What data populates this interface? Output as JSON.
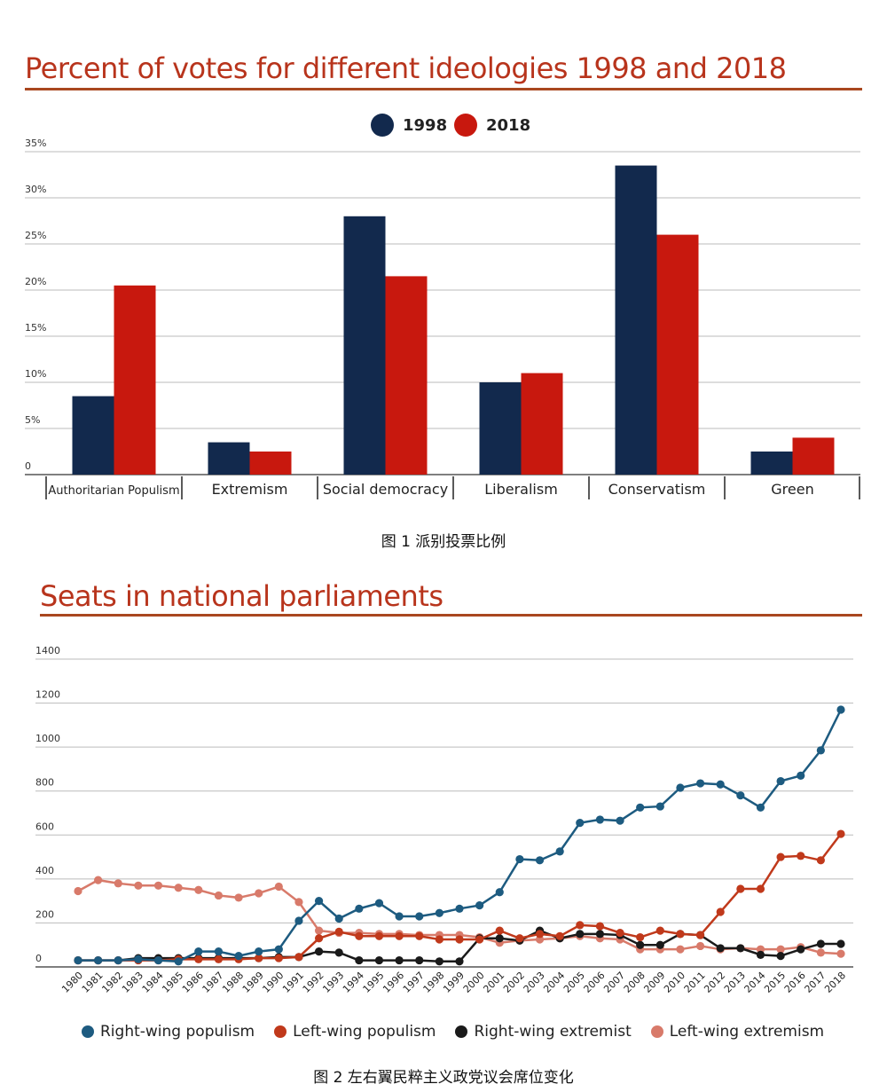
{
  "figure1": {
    "caption": "图 1 派别投票比例"
  },
  "figure2": {
    "caption": "图 2 左右翼民粹主义政党议会席位变化"
  },
  "colors": {
    "title": "#b8341c",
    "navy": "#12294d",
    "red": "#c8180e",
    "blue_series": "#1d5b80",
    "orange_series": "#c0391b",
    "black_series": "#1a1a1a",
    "salmon_series": "#d87a6a"
  },
  "chart_data": [
    {
      "type": "bar",
      "title": "Percent of votes for different ideologies 1998 and 2018",
      "categories": [
        "Authoritarian Populism",
        "Extremism",
        "Social democracy",
        "Liberalism",
        "Conservatism",
        "Green"
      ],
      "series": [
        {
          "name": "1998",
          "values": [
            8.5,
            3.5,
            28,
            10,
            33.5,
            2.5
          ]
        },
        {
          "name": "2018",
          "values": [
            20.5,
            2.5,
            21.5,
            11,
            26,
            4
          ]
        }
      ],
      "yticks": [
        "0",
        "5%",
        "10%",
        "15%",
        "20%",
        "25%",
        "30%",
        "35%"
      ],
      "ylim": [
        0,
        35
      ],
      "xlabel": "",
      "ylabel": "",
      "legend": "top-center",
      "grid": true
    },
    {
      "type": "line",
      "title": "Seats in national parliaments",
      "x": [
        "1980",
        "1981",
        "1982",
        "1983",
        "1984",
        "1985",
        "1986",
        "1987",
        "1988",
        "1989",
        "1990",
        "1991",
        "1992",
        "1993",
        "1994",
        "1995",
        "1996",
        "1997",
        "1998",
        "1999",
        "2000",
        "2001",
        "2002",
        "2003",
        "2004",
        "2005",
        "2006",
        "2007",
        "2008",
        "2009",
        "2010",
        "2011",
        "2012",
        "2013",
        "2014",
        "2015",
        "2016",
        "2017",
        "2018"
      ],
      "series": [
        {
          "name": "Right-wing populism",
          "values": [
            30,
            30,
            30,
            35,
            30,
            25,
            70,
            70,
            50,
            70,
            80,
            210,
            300,
            220,
            265,
            290,
            230,
            230,
            245,
            265,
            280,
            340,
            490,
            485,
            525,
            655,
            670,
            665,
            725,
            730,
            815,
            835,
            830,
            780,
            725,
            845,
            870,
            985,
            1170
          ]
        },
        {
          "name": "Left-wing populism",
          "values": [
            30,
            30,
            30,
            30,
            30,
            35,
            35,
            35,
            35,
            40,
            40,
            45,
            130,
            160,
            140,
            140,
            140,
            140,
            125,
            125,
            125,
            165,
            130,
            150,
            140,
            190,
            185,
            155,
            135,
            165,
            150,
            145,
            250,
            355,
            355,
            500,
            505,
            485,
            605
          ]
        },
        {
          "name": "Right-wing extremist",
          "values": [
            30,
            30,
            30,
            40,
            40,
            40,
            40,
            40,
            40,
            40,
            45,
            45,
            70,
            65,
            30,
            30,
            30,
            30,
            25,
            25,
            130,
            130,
            120,
            165,
            130,
            150,
            150,
            145,
            100,
            100,
            150,
            145,
            85,
            85,
            55,
            50,
            80,
            105,
            105
          ]
        },
        {
          "name": "Left-wing extremism",
          "values": [
            345,
            395,
            380,
            370,
            370,
            360,
            350,
            325,
            315,
            335,
            365,
            295,
            165,
            155,
            155,
            150,
            150,
            145,
            145,
            145,
            135,
            110,
            120,
            125,
            130,
            140,
            130,
            125,
            80,
            80,
            80,
            95,
            80,
            85,
            80,
            80,
            90,
            65,
            60
          ]
        }
      ],
      "yticks": [
        "0",
        "200",
        "400",
        "600",
        "800",
        "1000",
        "1200",
        "1400"
      ],
      "ylim": [
        0,
        1400
      ],
      "xlabel": "",
      "ylabel": "",
      "legend": "bottom-center",
      "grid": true
    }
  ]
}
